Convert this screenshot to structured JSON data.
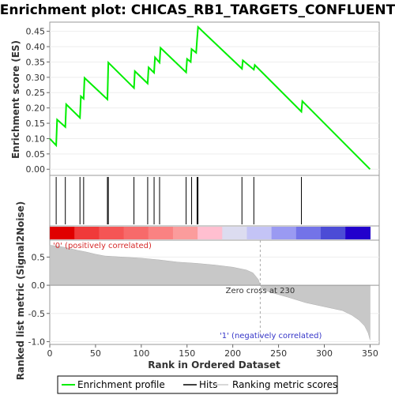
{
  "chart_data": {
    "type": "line",
    "title": "Enrichment plot: CHICAS_RB1_TARGETS_CONFLUENT",
    "es_panel": {
      "ylabel": "Enrichment score (ES)",
      "yticks": [
        "0.00",
        "0.05",
        "0.10",
        "0.15",
        "0.20",
        "0.25",
        "0.30",
        "0.35",
        "0.40",
        "0.45"
      ],
      "ylim": [
        -0.02,
        0.48
      ],
      "series": {
        "name": "Enrichment profile",
        "color": "#00ee00",
        "points": [
          [
            0,
            0.1
          ],
          [
            7,
            0.078
          ],
          [
            8,
            0.162
          ],
          [
            17,
            0.138
          ],
          [
            18,
            0.212
          ],
          [
            33,
            0.168
          ],
          [
            34,
            0.238
          ],
          [
            37,
            0.23
          ],
          [
            38,
            0.298
          ],
          [
            63,
            0.228
          ],
          [
            64,
            0.348
          ],
          [
            92,
            0.265
          ],
          [
            93,
            0.32
          ],
          [
            107,
            0.28
          ],
          [
            108,
            0.332
          ],
          [
            114,
            0.315
          ],
          [
            115,
            0.365
          ],
          [
            120,
            0.348
          ],
          [
            121,
            0.396
          ],
          [
            149,
            0.316
          ],
          [
            150,
            0.36
          ],
          [
            154,
            0.35
          ],
          [
            155,
            0.392
          ],
          [
            160,
            0.38
          ],
          [
            161,
            0.425
          ],
          [
            162,
            0.464
          ],
          [
            210,
            0.328
          ],
          [
            211,
            0.355
          ],
          [
            223,
            0.325
          ],
          [
            224,
            0.34
          ],
          [
            275,
            0.188
          ],
          [
            276,
            0.222
          ],
          [
            350,
            0.0
          ]
        ]
      }
    },
    "hits": [
      7,
      17,
      33,
      37,
      63,
      64,
      92,
      107,
      114,
      120,
      149,
      155,
      161,
      162,
      210,
      223,
      275
    ],
    "colorbar": [
      "#e00000",
      "#f03a3a",
      "#f55555",
      "#f76a6a",
      "#fa8282",
      "#fb9c9c",
      "#ffbfd0",
      "#dcdcf0",
      "#c4c4f6",
      "#9a9af2",
      "#7373e8",
      "#4c4cd6",
      "#2200cc"
    ],
    "metric_panel": {
      "ylabel": "Ranked list metric (Signal2Noise)",
      "yticks": [
        "-1.0",
        "-0.5",
        "0.0",
        "0.5"
      ],
      "ylim": [
        -1.05,
        0.8
      ],
      "zero_cross_label": "Zero cross at 230",
      "zero_cross": 230,
      "pos_label": "'0' (positively correlated)",
      "neg_label": "'1' (negatively correlated)",
      "profile": [
        [
          0,
          0.71
        ],
        [
          5,
          0.7
        ],
        [
          10,
          0.69
        ],
        [
          20,
          0.66
        ],
        [
          30,
          0.62
        ],
        [
          40,
          0.59
        ],
        [
          50,
          0.55
        ],
        [
          60,
          0.52
        ],
        [
          80,
          0.5
        ],
        [
          100,
          0.48
        ],
        [
          120,
          0.45
        ],
        [
          140,
          0.41
        ],
        [
          160,
          0.39
        ],
        [
          180,
          0.36
        ],
        [
          200,
          0.32
        ],
        [
          215,
          0.27
        ],
        [
          222,
          0.22
        ],
        [
          228,
          0.1
        ],
        [
          230,
          0.0
        ],
        [
          232,
          -0.06
        ],
        [
          240,
          -0.12
        ],
        [
          260,
          -0.21
        ],
        [
          280,
          -0.31
        ],
        [
          300,
          -0.38
        ],
        [
          320,
          -0.45
        ],
        [
          330,
          -0.53
        ],
        [
          338,
          -0.62
        ],
        [
          344,
          -0.72
        ],
        [
          348,
          -0.85
        ],
        [
          350,
          -0.97
        ]
      ]
    },
    "xlabel": "Rank in Ordered Dataset",
    "xticks": [
      "0",
      "50",
      "100",
      "150",
      "200",
      "250",
      "300",
      "350"
    ],
    "xlim": [
      0,
      360
    ],
    "legend": {
      "placement": "bottom",
      "items": [
        "Enrichment profile",
        "Hits",
        "Ranking metric scores"
      ]
    }
  }
}
